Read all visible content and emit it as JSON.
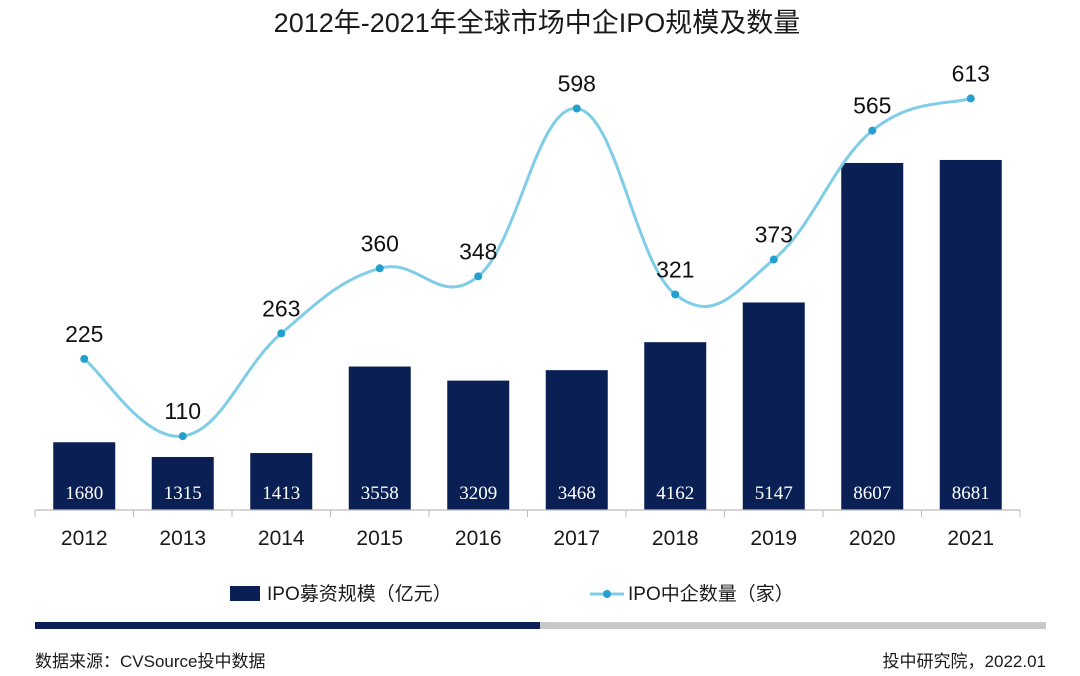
{
  "chart_data": {
    "type": "bar+line",
    "title": "2012年-2021年全球市场中企IPO规模及数量",
    "categories": [
      "2012",
      "2013",
      "2014",
      "2015",
      "2016",
      "2017",
      "2018",
      "2019",
      "2020",
      "2021"
    ],
    "series": [
      {
        "name": "IPO募资规模（亿元）",
        "type": "bar",
        "color": "#0a2055",
        "values": [
          1680,
          1315,
          1413,
          3558,
          3209,
          3468,
          4162,
          5147,
          8607,
          8681
        ]
      },
      {
        "name": "IPO中企数量（家）",
        "type": "line",
        "color": "#7fcde6",
        "values": [
          225,
          110,
          263,
          360,
          348,
          598,
          321,
          373,
          565,
          613
        ]
      }
    ],
    "bar_ylim": [
      0,
      9300
    ],
    "line_ylim": [
      0,
      700
    ],
    "legend_position": "bottom"
  },
  "footer": {
    "source": "数据来源：CVSource投中数据",
    "publisher": "投中研究院，2022.01"
  },
  "colors": {
    "accent_dark": "#0a2055",
    "accent_gray": "#c8c8c8"
  }
}
